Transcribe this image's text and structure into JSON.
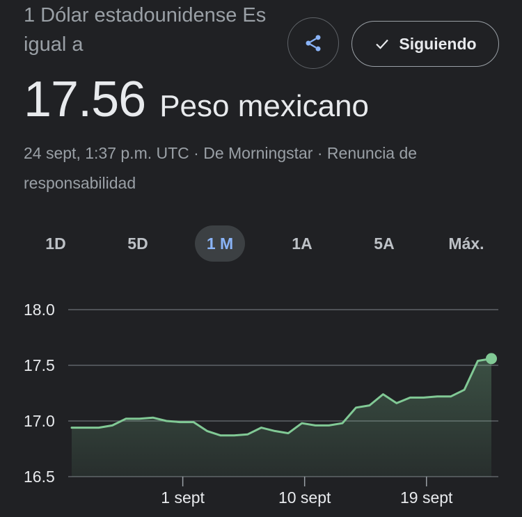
{
  "header": {
    "from_text": "1 Dólar estadounidense Es igual a",
    "follow_label": "Siguiendo"
  },
  "quote": {
    "value": "17.56",
    "currency": "Peso mexicano"
  },
  "meta": {
    "timestamp": "24 sept, 1:37 p.m. UTC",
    "separator": " · ",
    "source": "De Morningstar",
    "disclaimer": "Renuncia de responsabilidad"
  },
  "ranges": [
    {
      "label": "1D",
      "active": false
    },
    {
      "label": "5D",
      "active": false
    },
    {
      "label": "1 M",
      "active": true
    },
    {
      "label": "1A",
      "active": false
    },
    {
      "label": "5A",
      "active": false
    },
    {
      "label": "Máx.",
      "active": false
    }
  ],
  "colors": {
    "background": "#202124",
    "line": "#81c995",
    "active_tab": "#8ab4f8",
    "share_icon": "#8ab4f8"
  },
  "icons": {
    "share": "share-icon",
    "follow": "check-icon"
  },
  "chart_data": {
    "type": "line",
    "title": "",
    "xlabel": "",
    "ylabel": "",
    "ylim": [
      16.5,
      18.0
    ],
    "yticks": [
      "18.0",
      "17.5",
      "17.0",
      "16.5"
    ],
    "xticks": [
      {
        "label": "1 sept",
        "index": 8
      },
      {
        "label": "10 sept",
        "index": 17
      },
      {
        "label": "19 sept",
        "index": 26
      }
    ],
    "grid": true,
    "values": [
      16.94,
      16.94,
      16.94,
      16.96,
      17.02,
      17.02,
      17.03,
      17.0,
      16.99,
      16.99,
      16.91,
      16.87,
      16.87,
      16.88,
      16.94,
      16.91,
      16.89,
      16.98,
      16.96,
      16.96,
      16.98,
      17.12,
      17.14,
      17.24,
      17.16,
      17.21,
      17.21,
      17.22,
      17.22,
      17.28,
      17.54,
      17.56
    ]
  }
}
